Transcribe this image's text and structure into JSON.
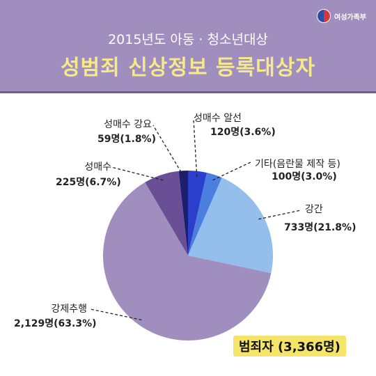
{
  "header": {
    "ministry_name": "여성가족부",
    "subtitle": "2015년도 아동 · 청소년대상",
    "title": "성범죄 신상정보 등록대상자"
  },
  "total_label": "범죄자 (3,366명)",
  "chart_data": {
    "type": "pie",
    "title": "성범죄 신상정보 등록대상자",
    "subtitle": "2015년도 아동 · 청소년대상",
    "total": 3366,
    "slices": [
      {
        "name": "성매수 알선",
        "value": 120,
        "percent": 3.6,
        "value_label": "120명(3.6%)",
        "color": "#2b3fcc"
      },
      {
        "name": "기타(음란물 제작 등)",
        "value": 100,
        "percent": 3.0,
        "value_label": "100명(3.0%)",
        "color": "#4a7fe0"
      },
      {
        "name": "강간",
        "value": 733,
        "percent": 21.8,
        "value_label": "733명(21.8%)",
        "color": "#94bfec"
      },
      {
        "name": "강제추행",
        "value": 2129,
        "percent": 63.3,
        "value_label": "2,129명(63.3%)",
        "color": "#a08ebf"
      },
      {
        "name": "성매수",
        "value": 225,
        "percent": 6.7,
        "value_label": "225명(6.7%)",
        "color": "#6a4e96"
      },
      {
        "name": "성매수 강요",
        "value": 59,
        "percent": 1.8,
        "value_label": "59명(1.8%)",
        "color": "#1c1f6e"
      }
    ]
  }
}
